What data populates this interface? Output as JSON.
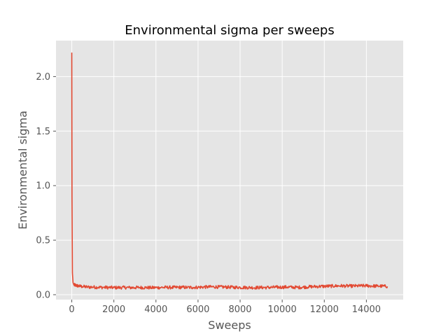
{
  "chart_data": {
    "type": "line",
    "title": "Environmental sigma per sweeps",
    "xlabel": "Sweeps",
    "ylabel": "Environmental sigma",
    "xlim": [
      -750,
      15750
    ],
    "ylim": [
      -0.045,
      2.33
    ],
    "xticks": [
      0,
      2000,
      4000,
      6000,
      8000,
      10000,
      12000,
      14000
    ],
    "xtick_labels": [
      "0",
      "2000",
      "4000",
      "6000",
      "8000",
      "10000",
      "12000",
      "14000"
    ],
    "yticks": [
      0.0,
      0.5,
      1.0,
      1.5,
      2.0
    ],
    "ytick_labels": [
      "0.0",
      "0.5",
      "1.0",
      "1.5",
      "2.0"
    ],
    "grid": true,
    "style": "ggplot",
    "series": [
      {
        "color": "#E24A33",
        "x": [
          0,
          10,
          30,
          60,
          100,
          200,
          300,
          500,
          750,
          1000,
          1250,
          1500,
          1750,
          2000,
          2250,
          2500,
          2750,
          3000,
          3250,
          3500,
          3750,
          4000,
          4250,
          4500,
          4750,
          5000,
          5250,
          5500,
          5750,
          6000,
          6250,
          6500,
          6750,
          7000,
          7250,
          7500,
          7750,
          8000,
          8250,
          8500,
          8750,
          9000,
          9250,
          9500,
          9750,
          10000,
          10250,
          10500,
          10750,
          11000,
          11250,
          11500,
          11750,
          12000,
          12250,
          12500,
          12750,
          13000,
          13250,
          13500,
          13750,
          14000,
          14250,
          14500,
          14750,
          15000
        ],
        "y": [
          2.22,
          0.9,
          0.2,
          0.11,
          0.09,
          0.085,
          0.08,
          0.075,
          0.07,
          0.07,
          0.068,
          0.067,
          0.066,
          0.065,
          0.065,
          0.066,
          0.065,
          0.065,
          0.066,
          0.065,
          0.064,
          0.065,
          0.066,
          0.067,
          0.066,
          0.067,
          0.068,
          0.066,
          0.067,
          0.068,
          0.07,
          0.071,
          0.072,
          0.071,
          0.07,
          0.069,
          0.068,
          0.067,
          0.066,
          0.066,
          0.065,
          0.066,
          0.066,
          0.067,
          0.068,
          0.069,
          0.07,
          0.068,
          0.067,
          0.069,
          0.072,
          0.074,
          0.076,
          0.077,
          0.078,
          0.08,
          0.081,
          0.08,
          0.079,
          0.08,
          0.081,
          0.082,
          0.08,
          0.079,
          0.078,
          0.076
        ]
      }
    ]
  }
}
